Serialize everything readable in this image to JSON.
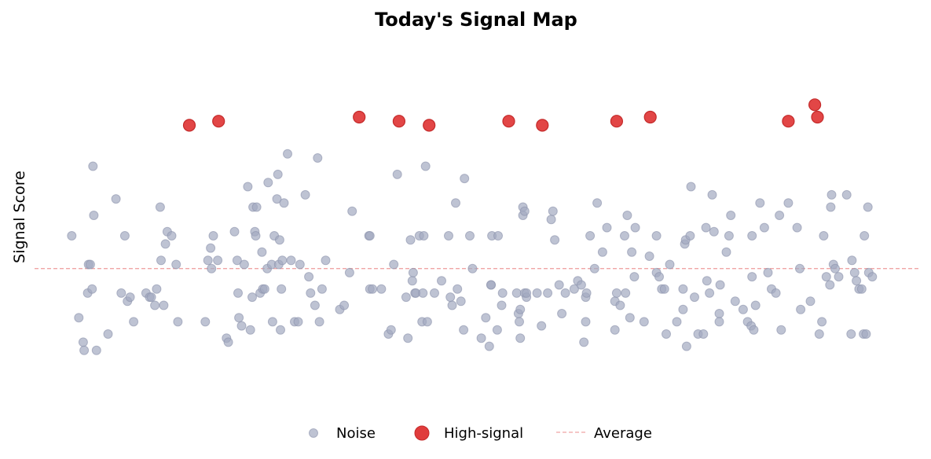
{
  "chart_data": {
    "type": "scatter",
    "title": "Today's Signal Map",
    "xlabel": "",
    "ylabel": "Signal Score",
    "xlim": [
      0,
      100
    ],
    "ylim": [
      -4,
      5.6
    ],
    "grid": false,
    "legend_position": "bottom",
    "average": 0,
    "colors": {
      "noise": "#a3aac0",
      "high_signal": "#e03c3c",
      "average_line": "#f0a5a5"
    },
    "legend": [
      {
        "key": "noise",
        "label": "Noise"
      },
      {
        "key": "high_signal",
        "label": "High-signal"
      },
      {
        "key": "average",
        "label": "Average"
      }
    ],
    "series": [
      {
        "name": "Noise",
        "points": [
          [
            4.2,
            0.8
          ],
          [
            5.0,
            -1.2
          ],
          [
            5.5,
            -1.8
          ],
          [
            5.6,
            -2.0
          ],
          [
            6.0,
            -0.6
          ],
          [
            6.1,
            0.1
          ],
          [
            6.3,
            0.1
          ],
          [
            6.5,
            -0.5
          ],
          [
            6.6,
            2.5
          ],
          [
            6.7,
            1.3
          ],
          [
            7.0,
            -2.0
          ],
          [
            8.3,
            -1.6
          ],
          [
            9.2,
            1.7
          ],
          [
            9.8,
            -0.6
          ],
          [
            10.2,
            0.8
          ],
          [
            10.5,
            -0.8
          ],
          [
            10.8,
            -0.7
          ],
          [
            11.2,
            -1.3
          ],
          [
            12.6,
            -0.6
          ],
          [
            13.0,
            -0.7
          ],
          [
            13.2,
            -0.7
          ],
          [
            13.6,
            -0.9
          ],
          [
            13.8,
            -0.5
          ],
          [
            14.2,
            1.5
          ],
          [
            14.3,
            0.2
          ],
          [
            14.6,
            -0.9
          ],
          [
            14.8,
            0.6
          ],
          [
            15.0,
            0.9
          ],
          [
            15.5,
            0.8
          ],
          [
            16.0,
            0.1
          ],
          [
            16.2,
            -1.3
          ],
          [
            19.3,
            -1.3
          ],
          [
            19.6,
            0.2
          ],
          [
            19.9,
            0.5
          ],
          [
            20.0,
            0.0
          ],
          [
            20.2,
            0.8
          ],
          [
            20.7,
            0.2
          ],
          [
            21.7,
            -1.7
          ],
          [
            21.9,
            -1.8
          ],
          [
            22.6,
            0.9
          ],
          [
            22.9,
            0.2
          ],
          [
            23.0,
            -0.6
          ],
          [
            23.1,
            -1.2
          ],
          [
            23.4,
            -1.4
          ],
          [
            23.7,
            0.1
          ],
          [
            24.1,
            2.0
          ],
          [
            24.4,
            -1.5
          ],
          [
            24.6,
            -0.7
          ],
          [
            24.7,
            1.5
          ],
          [
            24.9,
            0.9
          ],
          [
            25.0,
            0.8
          ],
          [
            25.1,
            1.5
          ],
          [
            25.5,
            -0.6
          ],
          [
            25.7,
            0.4
          ],
          [
            25.8,
            -0.5
          ],
          [
            26.0,
            -0.5
          ],
          [
            26.3,
            0.0
          ],
          [
            26.4,
            2.1
          ],
          [
            26.8,
            0.1
          ],
          [
            26.9,
            -1.3
          ],
          [
            27.1,
            0.8
          ],
          [
            27.4,
            1.7
          ],
          [
            27.5,
            2.3
          ],
          [
            27.6,
            0.1
          ],
          [
            27.7,
            0.7
          ],
          [
            27.8,
            -1.5
          ],
          [
            27.9,
            -0.5
          ],
          [
            28.0,
            0.2
          ],
          [
            28.2,
            1.6
          ],
          [
            28.6,
            2.8
          ],
          [
            29.0,
            0.2
          ],
          [
            29.4,
            -1.3
          ],
          [
            29.8,
            -1.3
          ],
          [
            30.0,
            0.1
          ],
          [
            30.6,
            1.8
          ],
          [
            31.0,
            -0.2
          ],
          [
            31.2,
            -0.6
          ],
          [
            31.7,
            -0.9
          ],
          [
            32.0,
            2.7
          ],
          [
            32.2,
            -1.3
          ],
          [
            32.5,
            -0.5
          ],
          [
            32.9,
            0.2
          ],
          [
            34.5,
            -1.0
          ],
          [
            35.0,
            -0.9
          ],
          [
            35.6,
            -0.1
          ],
          [
            35.9,
            1.4
          ],
          [
            37.8,
            0.8
          ],
          [
            37.9,
            0.8
          ],
          [
            37.9,
            -0.5
          ],
          [
            38.2,
            -0.5
          ],
          [
            39.2,
            -0.5
          ],
          [
            40.0,
            -1.6
          ],
          [
            40.3,
            -1.5
          ],
          [
            40.6,
            0.1
          ],
          [
            41.0,
            2.3
          ],
          [
            42.0,
            -0.7
          ],
          [
            42.2,
            -1.7
          ],
          [
            42.5,
            0.7
          ],
          [
            42.7,
            -0.3
          ],
          [
            42.8,
            -0.1
          ],
          [
            43.0,
            -0.6
          ],
          [
            43.1,
            -0.6
          ],
          [
            43.5,
            0.8
          ],
          [
            43.8,
            -1.3
          ],
          [
            43.9,
            -0.6
          ],
          [
            44.0,
            0.8
          ],
          [
            44.2,
            2.5
          ],
          [
            44.4,
            -1.3
          ],
          [
            45.2,
            -0.6
          ],
          [
            46.0,
            -0.3
          ],
          [
            46.8,
            0.8
          ],
          [
            47.0,
            -0.7
          ],
          [
            47.2,
            -0.9
          ],
          [
            47.6,
            1.6
          ],
          [
            47.8,
            -0.5
          ],
          [
            48.2,
            -0.8
          ],
          [
            48.5,
            -1.5
          ],
          [
            48.6,
            2.2
          ],
          [
            49.2,
            0.8
          ],
          [
            49.5,
            0.0
          ],
          [
            50.5,
            -1.7
          ],
          [
            51.0,
            -1.2
          ],
          [
            51.4,
            -1.9
          ],
          [
            51.6,
            -0.4
          ],
          [
            51.6,
            -0.4
          ],
          [
            51.7,
            0.8
          ],
          [
            52.3,
            -1.5
          ],
          [
            52.4,
            0.8
          ],
          [
            52.8,
            -0.9
          ],
          [
            52.9,
            -0.6
          ],
          [
            54.5,
            -0.6
          ],
          [
            54.7,
            -1.1
          ],
          [
            54.8,
            -1.3
          ],
          [
            54.9,
            -1.7
          ],
          [
            54.9,
            -1.0
          ],
          [
            55.2,
            1.5
          ],
          [
            55.2,
            1.3
          ],
          [
            55.4,
            1.4
          ],
          [
            55.4,
            -0.6
          ],
          [
            55.6,
            -0.7
          ],
          [
            55.6,
            -0.6
          ],
          [
            56.8,
            -0.6
          ],
          [
            57.3,
            -1.4
          ],
          [
            58.0,
            -0.6
          ],
          [
            58.4,
            1.2
          ],
          [
            58.6,
            1.4
          ],
          [
            58.8,
            0.7
          ],
          [
            59.3,
            -0.4
          ],
          [
            59.6,
            -1.1
          ],
          [
            60.0,
            -0.6
          ],
          [
            61.0,
            -0.5
          ],
          [
            61.4,
            -0.3
          ],
          [
            61.8,
            -0.4
          ],
          [
            62.1,
            -1.8
          ],
          [
            62.3,
            -0.7
          ],
          [
            62.3,
            -1.3
          ],
          [
            62.4,
            -0.6
          ],
          [
            62.8,
            0.8
          ],
          [
            63.3,
            0.0
          ],
          [
            63.6,
            1.6
          ],
          [
            64.2,
            0.4
          ],
          [
            64.7,
            1.0
          ],
          [
            65.6,
            -0.8
          ],
          [
            65.6,
            -1.5
          ],
          [
            65.8,
            -0.6
          ],
          [
            66.2,
            -0.9
          ],
          [
            66.7,
            0.8
          ],
          [
            66.8,
            -0.6
          ],
          [
            67.0,
            1.3
          ],
          [
            67.3,
            -1.2
          ],
          [
            67.5,
            0.4
          ],
          [
            67.8,
            -0.2
          ],
          [
            67.9,
            1.0
          ],
          [
            68.9,
            -1.3
          ],
          [
            69.5,
            0.3
          ],
          [
            70.3,
            0.8
          ],
          [
            70.3,
            -0.1
          ],
          [
            70.6,
            -0.2
          ],
          [
            70.9,
            -0.5
          ],
          [
            71.2,
            -0.5
          ],
          [
            71.4,
            -1.6
          ],
          [
            71.8,
            0.1
          ],
          [
            72.6,
            -1.3
          ],
          [
            73.3,
            -0.5
          ],
          [
            73.3,
            -1.0
          ],
          [
            73.5,
            0.6
          ],
          [
            73.6,
            0.7
          ],
          [
            73.7,
            -1.9
          ],
          [
            74.1,
            0.8
          ],
          [
            74.2,
            2.0
          ],
          [
            74.6,
            -0.7
          ],
          [
            75.0,
            -1.6
          ],
          [
            75.6,
            -1.6
          ],
          [
            75.9,
            1.0
          ],
          [
            76.0,
            -0.3
          ],
          [
            76.3,
            -0.6
          ],
          [
            76.6,
            1.8
          ],
          [
            76.8,
            0.9
          ],
          [
            77.4,
            -1.1
          ],
          [
            77.4,
            -1.3
          ],
          [
            77.5,
            -0.4
          ],
          [
            78.2,
            0.4
          ],
          [
            78.5,
            0.8
          ],
          [
            78.7,
            1.3
          ],
          [
            79.2,
            -0.8
          ],
          [
            80.1,
            -1.0
          ],
          [
            80.6,
            -1.3
          ],
          [
            81.0,
            -1.4
          ],
          [
            81.1,
            -0.2
          ],
          [
            81.1,
            0.8
          ],
          [
            81.3,
            -1.5
          ],
          [
            81.5,
            -0.9
          ],
          [
            82.0,
            1.6
          ],
          [
            82.5,
            1.0
          ],
          [
            82.9,
            -0.1
          ],
          [
            83.3,
            -0.5
          ],
          [
            83.8,
            -0.6
          ],
          [
            84.2,
            1.3
          ],
          [
            84.4,
            -1.5
          ],
          [
            85.2,
            1.6
          ],
          [
            86.2,
            1.0
          ],
          [
            86.5,
            0.0
          ],
          [
            86.6,
            -1.0
          ],
          [
            87.7,
            -0.8
          ],
          [
            88.7,
            -1.6
          ],
          [
            89.0,
            -1.3
          ],
          [
            89.2,
            0.8
          ],
          [
            89.5,
            -0.2
          ],
          [
            89.9,
            -0.4
          ],
          [
            90.0,
            1.5
          ],
          [
            90.1,
            1.8
          ],
          [
            90.3,
            0.1
          ],
          [
            90.5,
            0.0
          ],
          [
            90.9,
            -0.2
          ],
          [
            91.8,
            1.8
          ],
          [
            92.3,
            -1.6
          ],
          [
            92.4,
            0.2
          ],
          [
            92.7,
            -0.1
          ],
          [
            92.9,
            -0.3
          ],
          [
            93.2,
            -0.5
          ],
          [
            93.5,
            -0.5
          ],
          [
            93.7,
            -1.6
          ],
          [
            93.8,
            0.8
          ],
          [
            94.0,
            -1.6
          ],
          [
            94.2,
            1.5
          ],
          [
            94.3,
            -0.1
          ],
          [
            94.7,
            -0.2
          ]
        ]
      },
      {
        "name": "High-signal",
        "points": [
          [
            17.5,
            3.5
          ],
          [
            20.8,
            3.6
          ],
          [
            36.7,
            3.7
          ],
          [
            41.2,
            3.6
          ],
          [
            44.6,
            3.5
          ],
          [
            53.6,
            3.6
          ],
          [
            57.4,
            3.5
          ],
          [
            65.8,
            3.6
          ],
          [
            69.6,
            3.7
          ],
          [
            85.2,
            3.6
          ],
          [
            88.2,
            4.0
          ],
          [
            88.5,
            3.7
          ]
        ]
      }
    ]
  }
}
